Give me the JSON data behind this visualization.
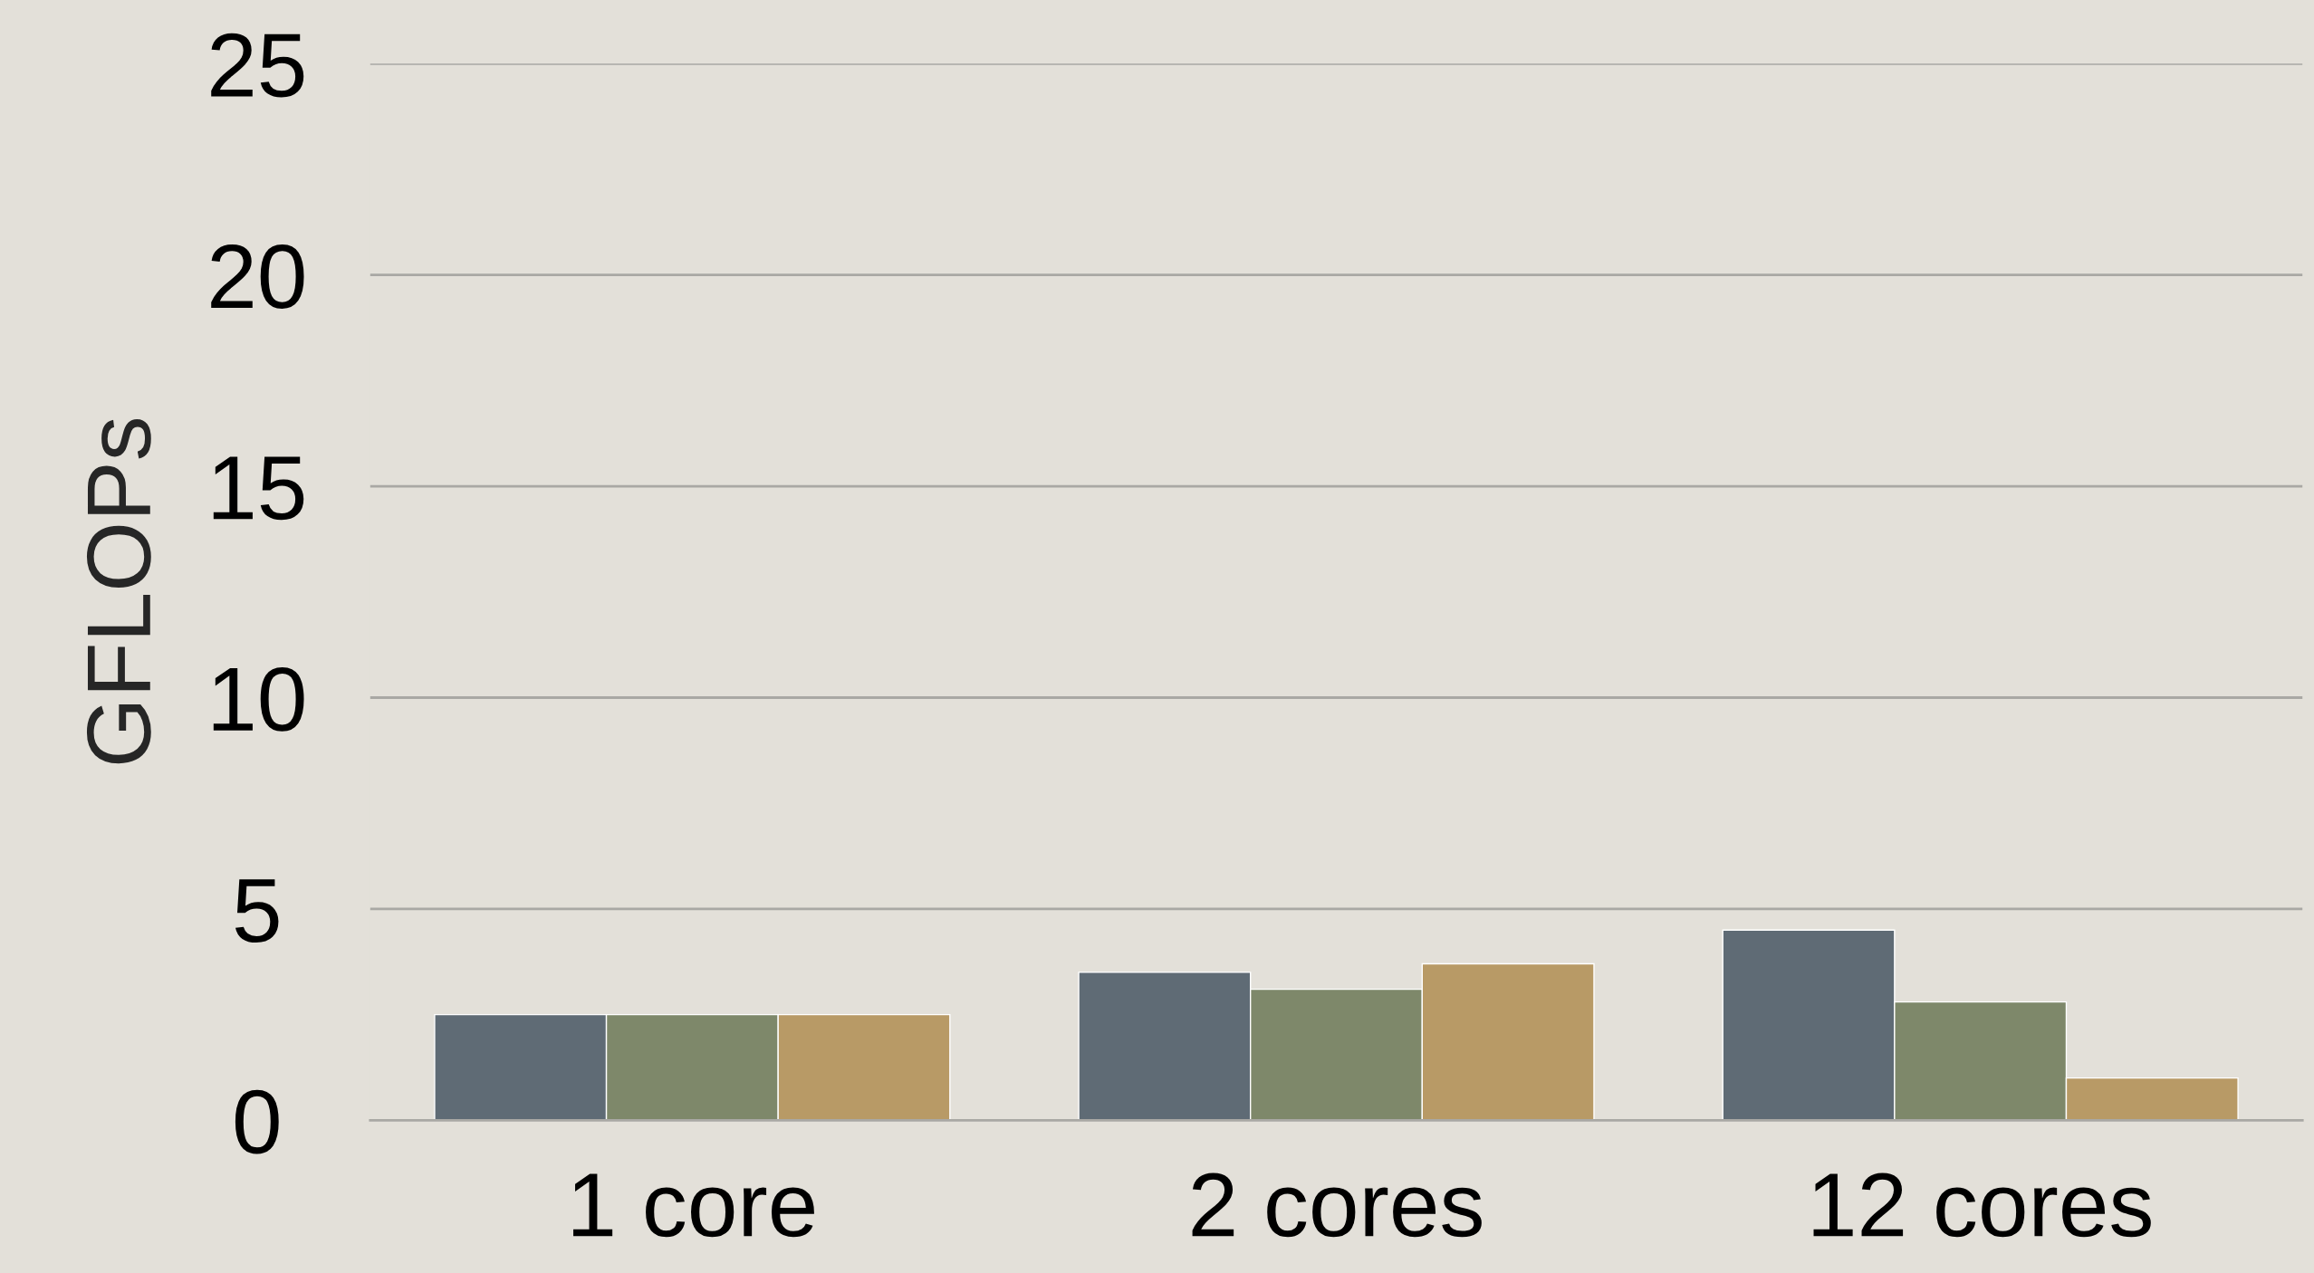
{
  "chart_data": {
    "type": "bar",
    "ylabel": "GFLOPs",
    "categories": [
      "1 core",
      "2 cores",
      "12 cores"
    ],
    "series": [
      {
        "color": "#5f6b75",
        "values": [
          2.5,
          3.5,
          4.5
        ]
      },
      {
        "color": "#7e886a",
        "values": [
          2.5,
          3.1,
          2.8
        ]
      },
      {
        "color": "#b89a66",
        "values": [
          2.5,
          3.7,
          1.0
        ]
      }
    ],
    "ylim": [
      0,
      25
    ],
    "yticks": [
      0,
      5,
      10,
      15,
      20,
      25
    ],
    "grid": "y",
    "legend": false
  }
}
